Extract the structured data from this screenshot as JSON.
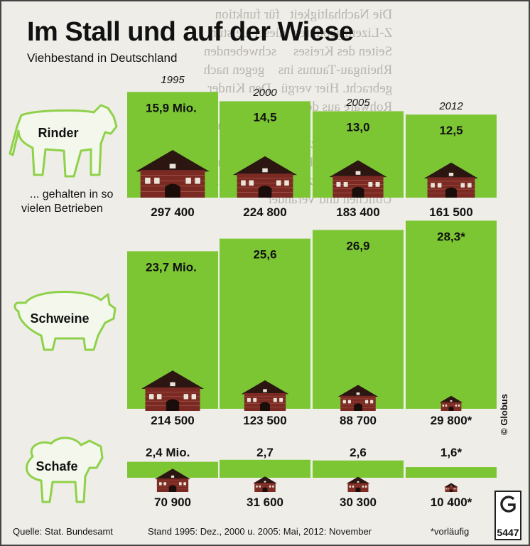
{
  "title": "Im Stall und auf der Wiese",
  "subtitle": "Viehbestand in Deutschland",
  "footer": {
    "source": "Quelle: Stat. Bundesamt",
    "stand": "Stand 1995: Dez., 2000 u. 2005: Mai, 2012: November",
    "note": "*vorläufig"
  },
  "credit": "© Globus",
  "logo_code": "5447",
  "colors": {
    "bar": "#7cc634",
    "animal_outline": "#8fd14a",
    "house_wall": "#7a2a22",
    "house_roof": "#2b1612"
  },
  "chart_data": {
    "type": "bar",
    "categories": [
      "1995",
      "2000",
      "2005",
      "2012"
    ],
    "category_labels": [
      "1995",
      "2000",
      "2005",
      "2012"
    ],
    "series": [
      {
        "name": "Rinder",
        "icon": "cow-icon",
        "unit": "Mio.",
        "values": [
          15.9,
          14.5,
          13.0,
          12.5
        ],
        "value_labels": [
          "15,9 Mio.",
          "14,5",
          "13,0",
          "12,5"
        ],
        "farms": [
          297400,
          224800,
          183400,
          161500
        ],
        "farm_labels": [
          "297 400",
          "224 800",
          "183 400",
          "161 500"
        ]
      },
      {
        "name": "Schweine",
        "icon": "pig-icon",
        "unit": "Mio.",
        "values": [
          23.7,
          25.6,
          26.9,
          28.3
        ],
        "value_labels": [
          "23,7 Mio.",
          "25,6",
          "26,9",
          "28,3*"
        ],
        "farms": [
          214500,
          123500,
          88700,
          29800
        ],
        "farm_labels": [
          "214 500",
          "123 500",
          "88 700",
          "29 800*"
        ]
      },
      {
        "name": "Schafe",
        "icon": "sheep-icon",
        "unit": "Mio.",
        "values": [
          2.4,
          2.7,
          2.6,
          1.6
        ],
        "value_labels": [
          "2,4 Mio.",
          "2,7",
          "2,6",
          "1,6*"
        ],
        "farms": [
          70900,
          31600,
          30300,
          10400
        ],
        "farm_labels": [
          "70 900",
          "31 600",
          "30 300",
          "10 400*"
        ]
      }
    ],
    "farms_label": "... gehalten in so vielen Betrieben"
  }
}
